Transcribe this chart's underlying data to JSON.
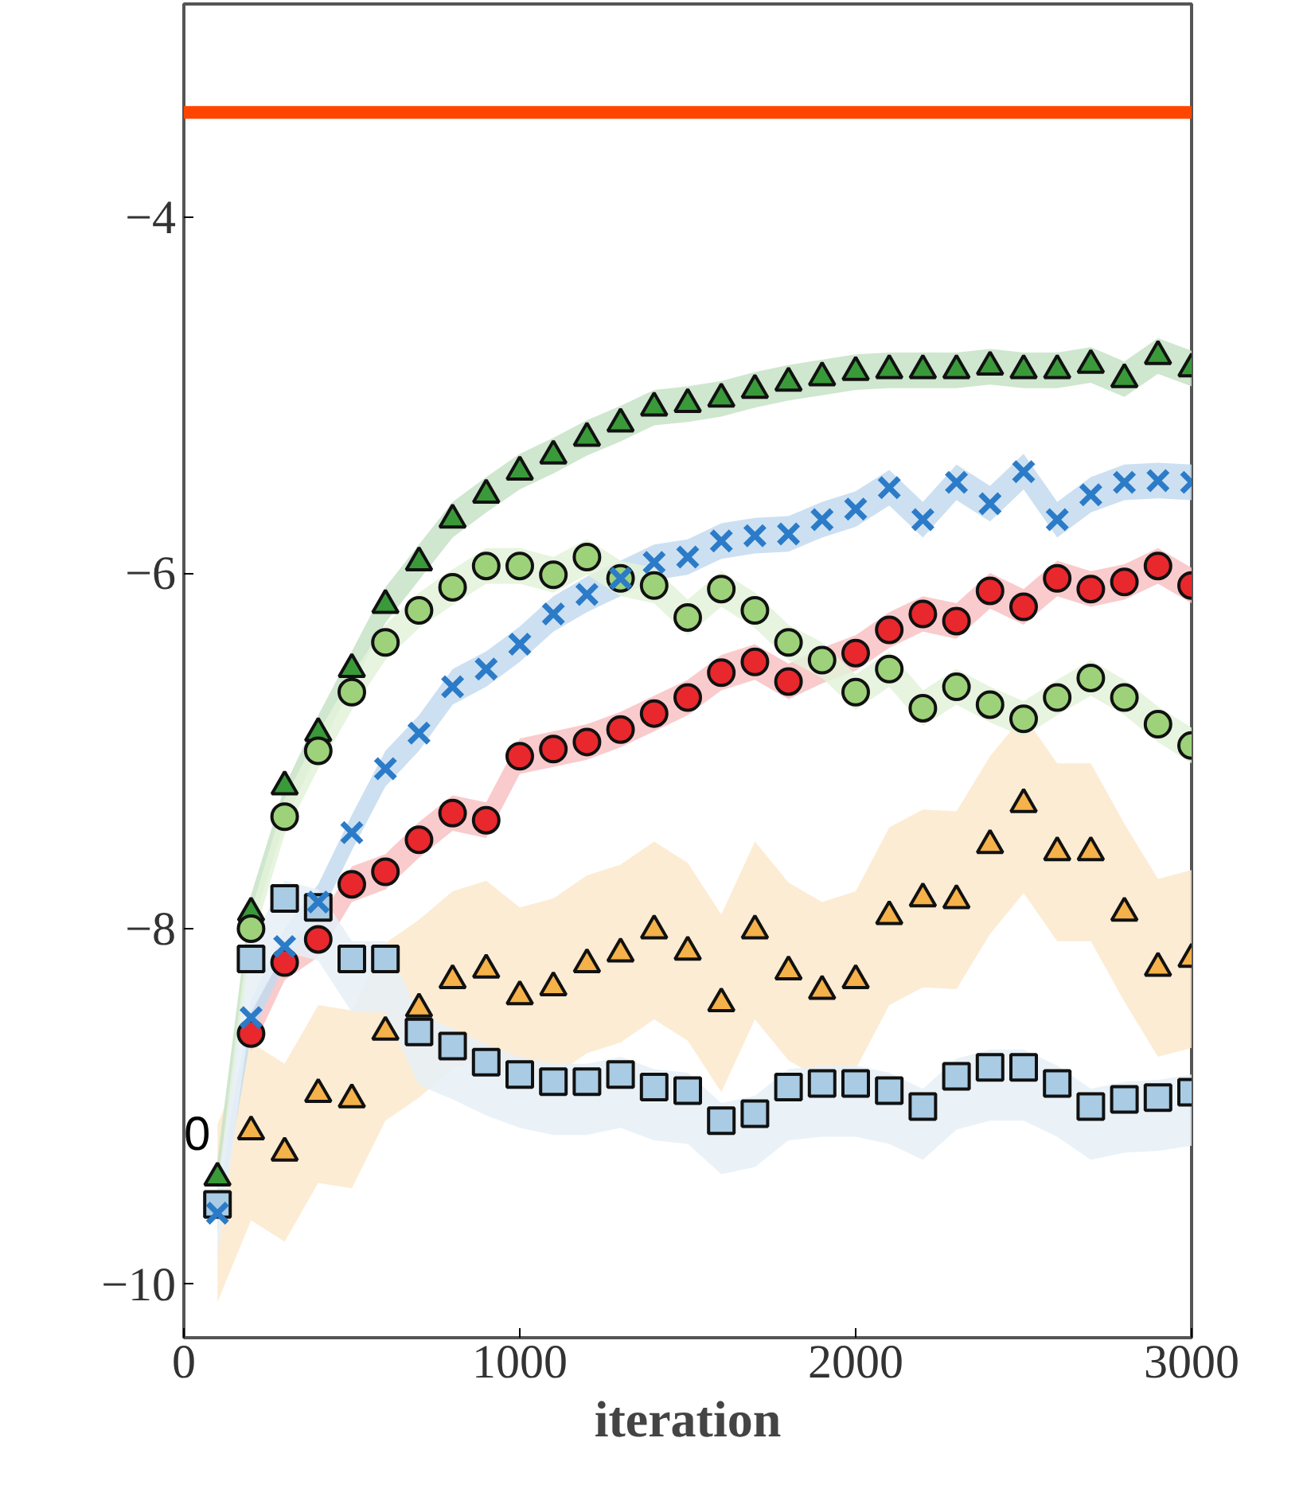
{
  "chart_data": {
    "type": "scatter",
    "xlabel": "iteration",
    "xlim": [
      0,
      3000
    ],
    "ylim": [
      -10.3,
      -2.8
    ],
    "xticks": [
      0,
      1000,
      2000,
      3000
    ],
    "yticks": [
      -10,
      -8,
      -6,
      -4
    ],
    "grid": false,
    "annotations": [
      "0"
    ],
    "ref_lines": [
      {
        "axis": "y",
        "value": -3.41,
        "color": "#ff4500"
      }
    ],
    "x": [
      100,
      200,
      300,
      400,
      500,
      600,
      700,
      800,
      900,
      1000,
      1100,
      1200,
      1300,
      1400,
      1500,
      1600,
      1700,
      1800,
      1900,
      2000,
      2100,
      2200,
      2300,
      2400,
      2500,
      2600,
      2700,
      2800,
      2900,
      3000
    ],
    "series": [
      {
        "color": "#f5b14a",
        "marker": "triangle",
        "values": [
          null,
          -9.14,
          -9.26,
          -8.93,
          -8.96,
          -8.58,
          -8.45,
          -8.29,
          -8.23,
          -8.38,
          -8.33,
          -8.2,
          -8.14,
          -8.01,
          -8.13,
          -8.42,
          -8.01,
          -8.24,
          -8.35,
          -8.29,
          -7.93,
          -7.83,
          -7.84,
          -7.53,
          -7.3,
          -7.57,
          -7.57,
          -7.91,
          -8.22,
          -8.17
        ],
        "lower": [
          -10.1,
          -9.64,
          -9.76,
          -9.43,
          -9.46,
          -9.08,
          -8.95,
          -8.79,
          -8.73,
          -8.88,
          -8.83,
          -8.7,
          -8.64,
          -8.51,
          -8.63,
          -8.92,
          -8.51,
          -8.74,
          -8.85,
          -8.79,
          -8.43,
          -8.33,
          -8.34,
          -8.03,
          -7.8,
          -8.07,
          -8.07,
          -8.41,
          -8.72,
          -8.67
        ],
        "upper": [
          -9.1,
          -8.64,
          -8.76,
          -8.43,
          -8.46,
          -8.08,
          -7.95,
          -7.79,
          -7.73,
          -7.88,
          -7.83,
          -7.7,
          -7.64,
          -7.51,
          -7.63,
          -7.92,
          -7.51,
          -7.74,
          -7.85,
          -7.79,
          -7.43,
          -7.33,
          -7.34,
          -7.03,
          -6.8,
          -7.07,
          -7.07,
          -7.41,
          -7.72,
          -7.67
        ]
      },
      {
        "color": "#e8282c",
        "marker": "circle",
        "values": [
          null,
          -8.59,
          -8.19,
          -8.06,
          -7.75,
          -7.68,
          -7.5,
          -7.35,
          -7.39,
          -7.03,
          -6.99,
          -6.95,
          -6.88,
          -6.79,
          -6.7,
          -6.56,
          -6.5,
          -6.61,
          null,
          -6.45,
          -6.32,
          -6.23,
          -6.27,
          -6.1,
          -6.19,
          -6.03,
          -6.09,
          -6.05,
          -5.96,
          -6.07
        ],
        "lower": [
          null,
          -8.69,
          -8.29,
          -8.16,
          -7.85,
          -7.78,
          -7.6,
          -7.45,
          -7.49,
          -7.13,
          -7.09,
          -7.05,
          -6.98,
          -6.89,
          -6.8,
          -6.66,
          -6.6,
          -6.71,
          -6.62,
          -6.55,
          -6.42,
          -6.33,
          -6.37,
          -6.2,
          -6.29,
          -6.13,
          -6.19,
          -6.15,
          -6.06,
          -6.17
        ],
        "upper": [
          null,
          -8.49,
          -8.09,
          -7.96,
          -7.65,
          -7.58,
          -7.4,
          -7.25,
          -7.29,
          -6.93,
          -6.89,
          -6.85,
          -6.78,
          -6.69,
          -6.6,
          -6.46,
          -6.4,
          -6.51,
          -6.42,
          -6.35,
          -6.22,
          -6.13,
          -6.17,
          -6.0,
          -6.09,
          -5.93,
          -5.99,
          -5.95,
          -5.86,
          -5.97
        ]
      },
      {
        "color": "#2b7bc8",
        "marker": "cross",
        "values": [
          -9.6,
          -8.5,
          -8.1,
          -7.85,
          -7.46,
          -7.1,
          -6.9,
          -6.64,
          -6.54,
          -6.4,
          -6.23,
          -6.12,
          -6.03,
          -5.94,
          -5.91,
          -5.82,
          -5.79,
          -5.78,
          -5.7,
          -5.64,
          -5.52,
          -5.7,
          -5.49,
          -5.61,
          -5.43,
          -5.7,
          -5.56,
          -5.49,
          -5.48,
          -5.49
        ],
        "lower": [
          -9.7,
          -8.6,
          -8.2,
          -7.95,
          -7.56,
          -7.2,
          -7.0,
          -6.74,
          -6.64,
          -6.5,
          -6.33,
          -6.22,
          -6.13,
          -6.04,
          -6.01,
          -5.92,
          -5.89,
          -5.88,
          -5.8,
          -5.74,
          -5.62,
          -5.8,
          -5.59,
          -5.71,
          -5.53,
          -5.8,
          -5.66,
          -5.59,
          -5.58,
          -5.59
        ],
        "upper": [
          -9.5,
          -8.4,
          -8.0,
          -7.75,
          -7.36,
          -7.0,
          -6.8,
          -6.54,
          -6.44,
          -6.3,
          -6.13,
          -6.02,
          -5.93,
          -5.84,
          -5.81,
          -5.72,
          -5.69,
          -5.68,
          -5.6,
          -5.54,
          -5.42,
          -5.6,
          -5.39,
          -5.51,
          -5.33,
          -5.6,
          -5.46,
          -5.39,
          -5.38,
          -5.39
        ]
      },
      {
        "color": "#3a9a3a",
        "marker": "triangle",
        "values": [
          -9.4,
          -7.91,
          -7.2,
          -6.9,
          -6.54,
          -6.18,
          -5.94,
          -5.7,
          -5.56,
          -5.43,
          -5.34,
          -5.24,
          -5.16,
          -5.07,
          -5.05,
          -5.02,
          -4.97,
          -4.93,
          -4.9,
          -4.87,
          -4.86,
          -4.86,
          -4.86,
          -4.84,
          -4.86,
          -4.86,
          -4.83,
          -4.91,
          -4.78,
          -4.85
        ],
        "lower": [
          -9.5,
          -8.01,
          -7.4,
          -7.0,
          -6.64,
          -6.28,
          -6.04,
          -5.8,
          -5.66,
          -5.53,
          -5.44,
          -5.34,
          -5.26,
          -5.17,
          -5.15,
          -5.12,
          -5.07,
          -5.03,
          -5.0,
          -4.97,
          -4.96,
          -4.96,
          -4.96,
          -4.94,
          -4.96,
          -4.96,
          -4.93,
          -5.01,
          -4.88,
          -4.95
        ],
        "upper": [
          -9.3,
          -7.81,
          -7.2,
          -6.8,
          -6.44,
          -6.08,
          -5.84,
          -5.6,
          -5.46,
          -5.33,
          -5.24,
          -5.14,
          -5.06,
          -4.97,
          -4.95,
          -4.92,
          -4.87,
          -4.83,
          -4.8,
          -4.77,
          -4.76,
          -4.76,
          -4.76,
          -4.74,
          -4.76,
          -4.76,
          -4.73,
          -4.81,
          -4.68,
          -4.75
        ]
      },
      {
        "color": "#9dd27a",
        "marker": "circle",
        "values": [
          null,
          -8.0,
          -7.37,
          -7.0,
          -6.67,
          -6.39,
          -6.21,
          -6.08,
          -5.96,
          -5.96,
          -6.01,
          -5.91,
          -6.03,
          -6.07,
          -6.25,
          -6.09,
          -6.21,
          -6.39,
          -6.49,
          -6.67,
          -6.54,
          -6.76,
          -6.64,
          -6.74,
          -6.82,
          -6.7,
          -6.59,
          -6.7,
          -6.85,
          -6.97
        ],
        "lower": [
          -9.65,
          -8.1,
          -7.47,
          -7.1,
          -6.77,
          -6.49,
          -6.31,
          -6.18,
          -6.06,
          -6.06,
          -6.11,
          -6.01,
          -6.13,
          -6.17,
          -6.35,
          -6.19,
          -6.31,
          -6.49,
          -6.59,
          -6.77,
          -6.64,
          -6.86,
          -6.74,
          -6.84,
          -6.92,
          -6.8,
          -6.69,
          -6.8,
          -6.95,
          -7.07
        ],
        "upper": [
          -9.45,
          -7.9,
          -7.27,
          -6.9,
          -6.57,
          -6.29,
          -6.11,
          -5.98,
          -5.86,
          -5.86,
          -5.91,
          -5.81,
          -5.93,
          -5.97,
          -6.15,
          -5.99,
          -6.11,
          -6.29,
          -6.39,
          -6.57,
          -6.44,
          -6.66,
          -6.54,
          -6.64,
          -6.72,
          -6.6,
          -6.49,
          -6.6,
          -6.75,
          -6.87
        ]
      },
      {
        "color": "#a9cbe3",
        "marker": "square",
        "values": [
          -9.55,
          -8.17,
          -7.83,
          -7.88,
          -8.17,
          -8.17,
          -8.58,
          -8.66,
          -8.75,
          -8.82,
          -8.86,
          -8.86,
          -8.82,
          -8.89,
          -8.91,
          -9.08,
          -9.04,
          -8.89,
          -8.87,
          -8.87,
          -8.91,
          -9.0,
          -8.83,
          -8.78,
          -8.78,
          -8.87,
          -9.0,
          -8.96,
          -8.95,
          -8.92
        ],
        "lower": [
          -9.85,
          -8.47,
          -8.13,
          -8.18,
          -8.47,
          -8.47,
          -8.88,
          -8.96,
          -9.05,
          -9.12,
          -9.16,
          -9.16,
          -9.12,
          -9.19,
          -9.21,
          -9.38,
          -9.34,
          -9.19,
          -9.17,
          -9.17,
          -9.21,
          -9.3,
          -9.13,
          -9.08,
          -9.08,
          -9.17,
          -9.3,
          -9.26,
          -9.25,
          -9.22
        ],
        "upper": [
          -9.45,
          -8.07,
          -7.73,
          -7.78,
          -8.07,
          -8.07,
          -8.48,
          -8.56,
          -8.65,
          -8.72,
          -8.76,
          -8.76,
          -8.72,
          -8.79,
          -8.81,
          -8.98,
          -8.94,
          -8.79,
          -8.77,
          -8.77,
          -8.81,
          -8.9,
          -8.73,
          -8.68,
          -8.68,
          -8.77,
          -8.9,
          -8.86,
          -8.85,
          -8.82
        ]
      }
    ]
  }
}
